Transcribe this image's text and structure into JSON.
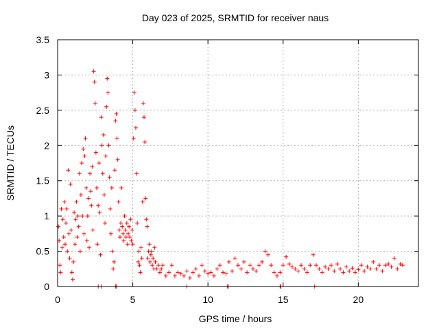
{
  "chart_data": {
    "type": "scatter",
    "title": "Day 023 of 2025, SRMTID for receiver naus",
    "xlabel": "GPS time / hours",
    "ylabel": "SRMTID / TECUs",
    "xlim": [
      0,
      24
    ],
    "ylim": [
      0,
      3.5
    ],
    "xticks": [
      0,
      5,
      10,
      15,
      20
    ],
    "yticks": [
      0,
      0.5,
      1,
      1.5,
      2,
      2.5,
      3,
      3.5
    ],
    "xtick_labels": [
      "0",
      "5",
      "10",
      "15",
      "20"
    ],
    "ytick_labels": [
      "0",
      "0.5",
      "1",
      "1.5",
      "2",
      "2.5",
      "3",
      "3.5"
    ],
    "grid": true,
    "marker": "+",
    "color": "#ff0000",
    "series": [
      {
        "name": "SRMTID",
        "points": [
          [
            0.05,
            0.85
          ],
          [
            0.1,
            0.65
          ],
          [
            0.15,
            0.3
          ],
          [
            0.2,
            0.2
          ],
          [
            0.25,
            1.1
          ],
          [
            0.3,
            0.55
          ],
          [
            0.35,
            0.95
          ],
          [
            0.4,
            0.7
          ],
          [
            0.45,
            1.2
          ],
          [
            0.5,
            0.6
          ],
          [
            0.55,
            0.9
          ],
          [
            0.6,
            1.1
          ],
          [
            0.65,
            0.5
          ],
          [
            0.7,
            1.65
          ],
          [
            0.75,
            0.75
          ],
          [
            0.8,
            0.4
          ],
          [
            0.85,
            1.45
          ],
          [
            0.9,
            0.8
          ],
          [
            0.95,
            0.2
          ],
          [
            1.0,
            0.1
          ],
          [
            1.05,
            0.35
          ],
          [
            1.1,
            1.05
          ],
          [
            1.15,
            0.6
          ],
          [
            1.2,
            0.95
          ],
          [
            1.25,
            1.2
          ],
          [
            1.3,
            0.7
          ],
          [
            1.35,
            1.0
          ],
          [
            1.4,
            0.85
          ],
          [
            1.45,
            1.6
          ],
          [
            1.5,
            0.5
          ],
          [
            1.55,
            1.3
          ],
          [
            1.6,
            1.75
          ],
          [
            1.65,
            1.0
          ],
          [
            1.7,
            1.95
          ],
          [
            1.75,
            0.75
          ],
          [
            1.8,
            1.85
          ],
          [
            1.85,
            2.1
          ],
          [
            1.9,
            1.4
          ],
          [
            1.95,
            0.65
          ],
          [
            2.0,
            1.0
          ],
          [
            2.05,
            1.25
          ],
          [
            2.1,
            0.55
          ],
          [
            2.15,
            1.6
          ],
          [
            2.2,
            1.35
          ],
          [
            2.25,
            1.15
          ],
          [
            2.3,
            1.7
          ],
          [
            2.35,
            0.8
          ],
          [
            2.4,
            3.05
          ],
          [
            2.45,
            2.9
          ],
          [
            2.5,
            2.6
          ],
          [
            2.55,
            1.9
          ],
          [
            2.6,
            1.4
          ],
          [
            2.65,
            0.6
          ],
          [
            2.7,
            1.15
          ],
          [
            2.75,
            1.75
          ],
          [
            2.8,
            1.05
          ],
          [
            2.85,
            0.45
          ],
          [
            2.9,
            2.4
          ],
          [
            2.95,
            2.0
          ],
          [
            3.0,
            1.6
          ],
          [
            3.05,
            2.15
          ],
          [
            3.1,
            1.3
          ],
          [
            3.15,
            0.9
          ],
          [
            3.2,
            1.85
          ],
          [
            3.25,
            2.55
          ],
          [
            3.3,
            2.95
          ],
          [
            3.35,
            2.75
          ],
          [
            3.4,
            2.0
          ],
          [
            3.45,
            1.55
          ],
          [
            3.5,
            1.1
          ],
          [
            3.55,
            0.75
          ],
          [
            3.6,
            1.4
          ],
          [
            3.65,
            0.5
          ],
          [
            3.7,
            0.25
          ],
          [
            3.75,
            0.35
          ],
          [
            3.8,
            1.65
          ],
          [
            3.85,
            2.35
          ],
          [
            3.9,
            2.45
          ],
          [
            3.95,
            2.1
          ],
          [
            4.0,
            1.8
          ],
          [
            4.05,
            1.2
          ],
          [
            4.1,
            0.8
          ],
          [
            4.15,
            0.7
          ],
          [
            4.2,
            0.9
          ],
          [
            4.25,
            1.4
          ],
          [
            4.3,
            0.85
          ],
          [
            4.35,
            0.75
          ],
          [
            4.4,
            0.65
          ],
          [
            4.45,
            1.0
          ],
          [
            4.5,
            0.8
          ],
          [
            4.55,
            0.7
          ],
          [
            4.6,
            0.9
          ],
          [
            4.65,
            0.6
          ],
          [
            4.7,
            0.75
          ],
          [
            4.75,
            0.85
          ],
          [
            4.8,
            0.7
          ],
          [
            4.85,
            0.95
          ],
          [
            4.9,
            0.65
          ],
          [
            4.95,
            0.8
          ],
          [
            5.0,
            0.6
          ],
          [
            5.05,
            2.1
          ],
          [
            5.1,
            2.75
          ],
          [
            5.15,
            2.5
          ],
          [
            5.2,
            2.25
          ],
          [
            5.25,
            1.6
          ],
          [
            5.3,
            0.9
          ],
          [
            5.35,
            0.35
          ],
          [
            5.4,
            0.5
          ],
          [
            5.45,
            0.3
          ],
          [
            5.5,
            0.2
          ],
          [
            5.55,
            0.55
          ],
          [
            5.6,
            0.4
          ],
          [
            5.65,
            1.2
          ],
          [
            5.7,
            2.6
          ],
          [
            5.75,
            2.4
          ],
          [
            5.8,
            2.05
          ],
          [
            5.85,
            1.25
          ],
          [
            5.9,
            0.95
          ],
          [
            5.95,
            0.85
          ],
          [
            6.0,
            0.4
          ],
          [
            6.05,
            0.5
          ],
          [
            6.1,
            0.6
          ],
          [
            6.15,
            0.35
          ],
          [
            6.2,
            0.45
          ],
          [
            6.25,
            0.5
          ],
          [
            6.3,
            0.3
          ],
          [
            6.35,
            0.4
          ],
          [
            6.4,
            0.25
          ],
          [
            6.45,
            0.55
          ],
          [
            6.5,
            0.35
          ],
          [
            6.6,
            0.25
          ],
          [
            6.7,
            0.3
          ],
          [
            6.8,
            0.2
          ],
          [
            6.9,
            0.25
          ],
          [
            7.0,
            0.3
          ],
          [
            7.2,
            0.15
          ],
          [
            7.4,
            0.2
          ],
          [
            7.6,
            0.3
          ],
          [
            7.8,
            0.15
          ],
          [
            8.0,
            0.2
          ],
          [
            8.2,
            0.18
          ],
          [
            8.4,
            0.15
          ],
          [
            8.6,
            0.22
          ],
          [
            8.8,
            0.12
          ],
          [
            9.0,
            0.2
          ],
          [
            9.2,
            0.25
          ],
          [
            9.4,
            0.15
          ],
          [
            9.6,
            0.3
          ],
          [
            9.8,
            0.22
          ],
          [
            10.0,
            0.18
          ],
          [
            10.2,
            0.2
          ],
          [
            10.4,
            0.15
          ],
          [
            10.6,
            0.25
          ],
          [
            10.8,
            0.3
          ],
          [
            11.0,
            0.2
          ],
          [
            11.2,
            0.18
          ],
          [
            11.4,
            0.35
          ],
          [
            11.6,
            0.22
          ],
          [
            11.8,
            0.4
          ],
          [
            12.0,
            0.3
          ],
          [
            12.2,
            0.25
          ],
          [
            12.4,
            0.35
          ],
          [
            12.6,
            0.2
          ],
          [
            12.8,
            0.3
          ],
          [
            13.0,
            0.25
          ],
          [
            13.2,
            0.22
          ],
          [
            13.4,
            0.3
          ],
          [
            13.6,
            0.35
          ],
          [
            13.8,
            0.5
          ],
          [
            14.0,
            0.45
          ],
          [
            14.2,
            0.3
          ],
          [
            14.4,
            0.2
          ],
          [
            14.6,
            0.15
          ],
          [
            14.8,
            0.2
          ],
          [
            15.0,
            0.3
          ],
          [
            15.2,
            0.42
          ],
          [
            15.4,
            0.32
          ],
          [
            15.6,
            0.28
          ],
          [
            15.8,
            0.25
          ],
          [
            16.0,
            0.22
          ],
          [
            16.2,
            0.3
          ],
          [
            16.4,
            0.25
          ],
          [
            16.6,
            0.2
          ],
          [
            16.8,
            0.3
          ],
          [
            17.0,
            0.45
          ],
          [
            17.2,
            0.3
          ],
          [
            17.4,
            0.25
          ],
          [
            17.6,
            0.2
          ],
          [
            17.8,
            0.28
          ],
          [
            18.0,
            0.25
          ],
          [
            18.2,
            0.3
          ],
          [
            18.4,
            0.22
          ],
          [
            18.6,
            0.32
          ],
          [
            18.8,
            0.25
          ],
          [
            19.0,
            0.2
          ],
          [
            19.2,
            0.28
          ],
          [
            19.4,
            0.22
          ],
          [
            19.6,
            0.26
          ],
          [
            19.8,
            0.2
          ],
          [
            20.0,
            0.24
          ],
          [
            20.2,
            0.3
          ],
          [
            20.4,
            0.22
          ],
          [
            20.6,
            0.28
          ],
          [
            20.8,
            0.25
          ],
          [
            21.0,
            0.35
          ],
          [
            21.2,
            0.25
          ],
          [
            21.4,
            0.3
          ],
          [
            21.6,
            0.22
          ],
          [
            21.8,
            0.3
          ],
          [
            22.0,
            0.32
          ],
          [
            22.2,
            0.28
          ],
          [
            22.4,
            0.4
          ],
          [
            22.6,
            0.25
          ],
          [
            22.8,
            0.32
          ],
          [
            22.95,
            0.3
          ],
          [
            2.7,
            0.0
          ],
          [
            2.9,
            0.0
          ],
          [
            3.85,
            0.0
          ],
          [
            3.9,
            0.0
          ],
          [
            8.6,
            0.0
          ],
          [
            11.3,
            0.0
          ],
          [
            11.35,
            0.0
          ],
          [
            14.8,
            0.0
          ],
          [
            14.85,
            0.0
          ],
          [
            17.1,
            0.0
          ]
        ]
      }
    ]
  }
}
